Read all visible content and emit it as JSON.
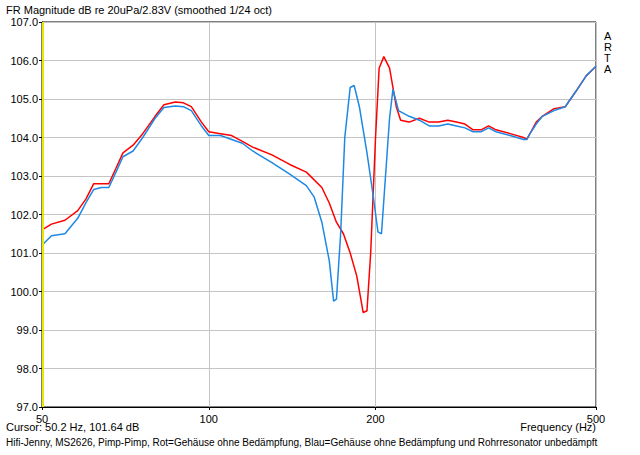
{
  "chart_data": {
    "type": "line",
    "title": "FR Magnitude dB re 20uPa/2.83V (smoothed 1/24 oct)",
    "xlabel": "Frequency (Hz)",
    "annotations": [
      "ARTA",
      "Hifi-Jenny, MS2626, Pimp-Pimp, Rot=Gehäuse ohne Bedämpfung, Blau=Gehäuse ohne Bedämpfung und Rohrresonator unbedämpft"
    ],
    "cursor": {
      "label": "Cursor: 50.2 Hz, 101.64 dB",
      "x": 50.2,
      "color": "#e8e800"
    },
    "log": "x",
    "grid": true,
    "xlim": [
      50,
      500
    ],
    "xticks": [
      50,
      100,
      200,
      500
    ],
    "ylim": [
      97,
      107
    ],
    "yticks": [
      {
        "value": 97,
        "label": "97.0"
      },
      {
        "value": 98,
        "label": "98.0"
      },
      {
        "value": 99,
        "label": "99.0"
      },
      {
        "value": 100,
        "label": "100.0"
      },
      {
        "value": 101,
        "label": "101.0"
      },
      {
        "value": 102,
        "label": "102.0"
      },
      {
        "value": 103,
        "label": "103.0"
      },
      {
        "value": 104,
        "label": "104.0"
      },
      {
        "value": 105,
        "label": "105.0"
      },
      {
        "value": 106,
        "label": "106.0"
      },
      {
        "value": 107,
        "label": "107.0"
      }
    ],
    "series": [
      {
        "color": "#ff0000",
        "x": [
          50,
          52,
          55,
          58,
          60,
          62,
          64,
          66,
          68,
          70,
          73,
          76,
          80,
          83,
          87,
          90,
          93,
          97,
          100,
          105,
          110,
          115,
          120,
          130,
          140,
          150,
          160,
          165,
          170,
          175,
          180,
          185,
          190,
          193,
          196,
          200,
          203,
          207,
          212,
          218,
          222,
          230,
          240,
          250,
          260,
          270,
          280,
          290,
          300,
          310,
          320,
          330,
          350,
          370,
          375,
          380,
          390,
          400,
          420,
          440,
          460,
          480,
          500
        ],
        "values": [
          101.6,
          101.75,
          101.85,
          102.1,
          102.4,
          102.8,
          102.8,
          102.8,
          103.2,
          103.6,
          103.8,
          104.1,
          104.55,
          104.85,
          104.92,
          104.9,
          104.8,
          104.4,
          104.15,
          104.1,
          104.05,
          103.9,
          103.75,
          103.55,
          103.3,
          103.1,
          102.7,
          102.3,
          101.8,
          101.5,
          101.0,
          100.4,
          99.45,
          99.5,
          101.0,
          104.0,
          105.8,
          106.1,
          105.8,
          104.8,
          104.45,
          104.4,
          104.5,
          104.4,
          104.4,
          104.45,
          104.4,
          104.35,
          104.2,
          104.2,
          104.3,
          104.2,
          104.1,
          104.0,
          103.95,
          104.1,
          104.4,
          104.55,
          104.75,
          104.8,
          105.2,
          105.6,
          105.85
        ]
      },
      {
        "color": "#1e88e5",
        "x": [
          50,
          52,
          55,
          58,
          60,
          62,
          64,
          66,
          68,
          70,
          73,
          76,
          80,
          83,
          87,
          90,
          93,
          97,
          100,
          105,
          110,
          115,
          120,
          130,
          140,
          150,
          155,
          160,
          165,
          168,
          170,
          173,
          176,
          180,
          183,
          187,
          193,
          198,
          202,
          205,
          208,
          212,
          215,
          220,
          230,
          240,
          250,
          260,
          270,
          280,
          290,
          300,
          310,
          320,
          330,
          350,
          370,
          375,
          380,
          390,
          400,
          420,
          440,
          460,
          480,
          500
        ],
        "values": [
          101.2,
          101.45,
          101.5,
          101.9,
          102.3,
          102.65,
          102.7,
          102.7,
          103.1,
          103.5,
          103.65,
          104.0,
          104.5,
          104.78,
          104.82,
          104.8,
          104.7,
          104.3,
          104.05,
          104.05,
          103.95,
          103.85,
          103.65,
          103.35,
          103.05,
          102.75,
          102.45,
          101.8,
          100.8,
          99.75,
          99.8,
          101.5,
          104.0,
          105.3,
          105.35,
          104.8,
          103.6,
          102.5,
          101.55,
          101.5,
          102.8,
          104.5,
          105.25,
          104.7,
          104.55,
          104.45,
          104.3,
          104.3,
          104.35,
          104.3,
          104.25,
          104.15,
          104.15,
          104.25,
          104.15,
          104.05,
          103.95,
          103.95,
          104.1,
          104.35,
          104.55,
          104.7,
          104.8,
          105.2,
          105.6,
          105.85
        ]
      }
    ]
  }
}
